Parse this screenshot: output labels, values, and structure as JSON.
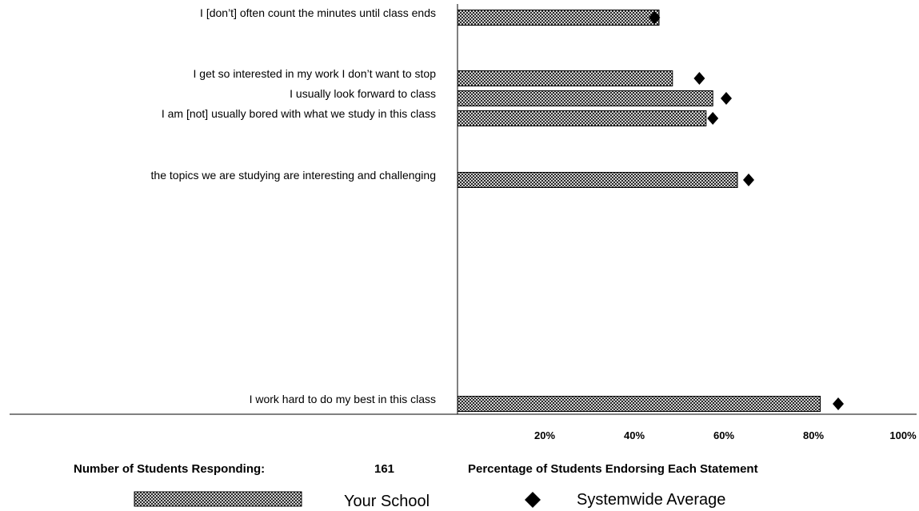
{
  "chart_data": {
    "type": "bar",
    "orientation": "horizontal",
    "categories": [
      "I [don’t] often count the minutes until class ends",
      "I get so interested in my work I don’t want to stop",
      "I usually look forward to class",
      "I am [not] usually bored with what we study in this class",
      "the topics we are studying are interesting and challenging",
      "I work hard to do my best in this class"
    ],
    "series": [
      {
        "name": "Your School",
        "values": [
          45,
          48,
          57,
          55.5,
          62.5,
          81
        ],
        "style": "crosshatch-bar"
      },
      {
        "name": "Systemwide Average",
        "values": [
          44,
          54,
          60,
          57,
          65,
          85
        ],
        "style": "diamond-marker"
      }
    ],
    "xlabel": "Percentage of Students Endorsing Each Statement",
    "xlim": [
      0,
      100
    ],
    "xticks": [
      "20%",
      "40%",
      "60%",
      "80%",
      "100%"
    ],
    "grid": false,
    "legend_position": "bottom"
  },
  "footer": {
    "respondents_label": "Number of Students Responding:",
    "respondents_count": "161"
  },
  "legend": {
    "your_school": "Your School",
    "systemwide": "Systemwide Average"
  }
}
